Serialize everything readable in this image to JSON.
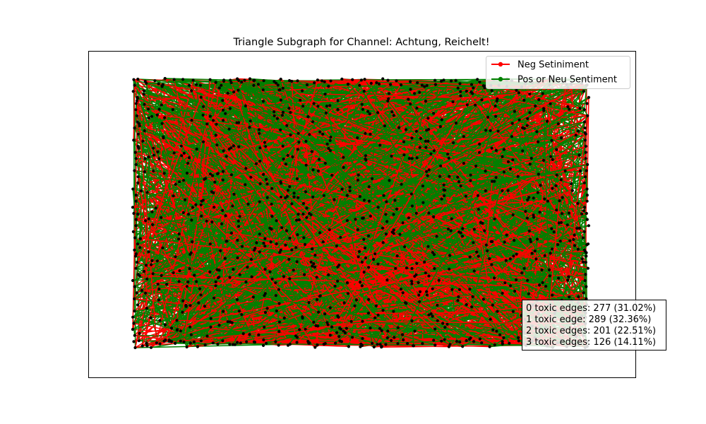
{
  "chart_data": {
    "type": "network",
    "title": "Triangle Subgraph for Channel: Achtung, Reichelt!",
    "axes_visible": false,
    "legend": {
      "placement": "top-right",
      "entries": [
        {
          "label": "Neg Setiniment",
          "color": "#ff0000"
        },
        {
          "label": "Pos or Neu Sentiment",
          "color": "#008000"
        }
      ]
    },
    "node_color": "#000000",
    "edge_colors": {
      "negative": "#ff0000",
      "positive_or_neutral": "#008000"
    },
    "triangle_toxicity_counts": [
      {
        "toxic_edges": 0,
        "count": 277,
        "percent": 31.02,
        "text": "0 toxic edges: 277 (31.02%)"
      },
      {
        "toxic_edges": 1,
        "count": 289,
        "percent": 32.36,
        "text": "1 toxic edge: 289 (32.36%)"
      },
      {
        "toxic_edges": 2,
        "count": 201,
        "percent": 22.51,
        "text": "2 toxic edges: 201 (22.51%)"
      },
      {
        "toxic_edges": 3,
        "count": 126,
        "percent": 14.11,
        "text": "3 toxic edges: 126 (14.11%)"
      }
    ],
    "stats_box_placement": "bottom-right"
  }
}
